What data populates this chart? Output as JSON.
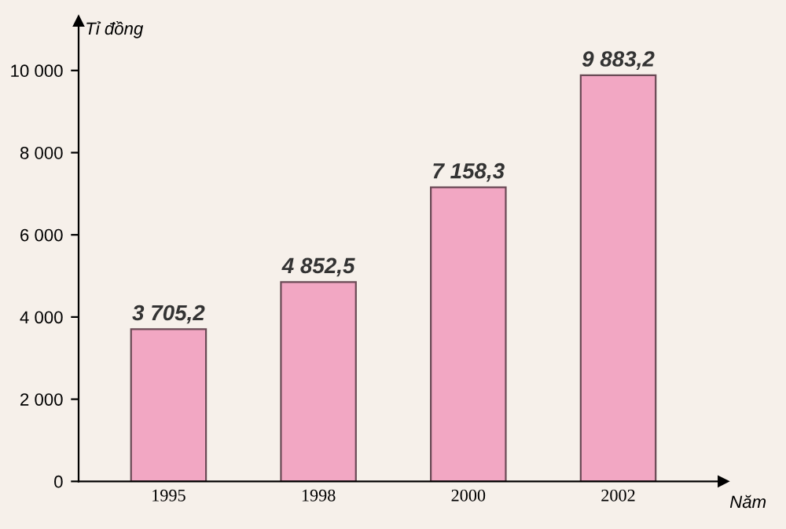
{
  "chart_data": {
    "type": "bar",
    "ylabel": "Tỉ đồng",
    "xlabel": "Năm",
    "categories": [
      "1995",
      "1998",
      "2000",
      "2002"
    ],
    "values": [
      3705.2,
      4852.5,
      7158.3,
      9883.2
    ],
    "value_labels": [
      "3 705,2",
      "4 852,5",
      "7 158,3",
      "9 883,2"
    ],
    "color": "#f2a7c3",
    "ylim": [
      0,
      11200
    ],
    "yticks": [
      0,
      {
        "value": 2000,
        "label": "2 000"
      },
      {
        "value": 4000,
        "label": "4 000"
      },
      {
        "value": 6000,
        "label": "6 000"
      },
      {
        "value": 8000,
        "label": "8 000"
      },
      {
        "value": 10000,
        "label": "10 000"
      }
    ],
    "grid": false,
    "legend": false
  }
}
